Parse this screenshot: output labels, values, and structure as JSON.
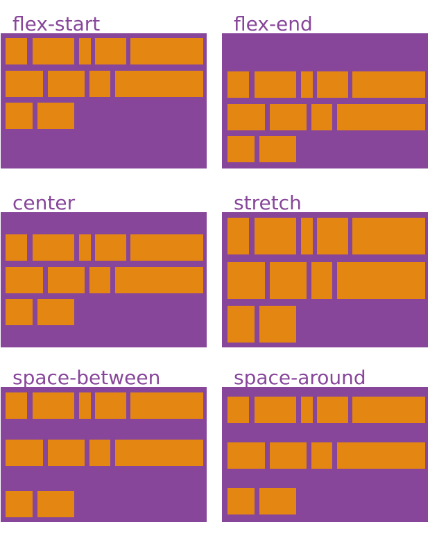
{
  "colors": {
    "container": "#87469a",
    "item": "#e38612",
    "label": "#87469a"
  },
  "panels": [
    {
      "label": "flex-start"
    },
    {
      "label": "flex-end"
    },
    {
      "label": "center"
    },
    {
      "label": "stretch"
    },
    {
      "label": "space-between"
    },
    {
      "label": "space-around"
    }
  ]
}
